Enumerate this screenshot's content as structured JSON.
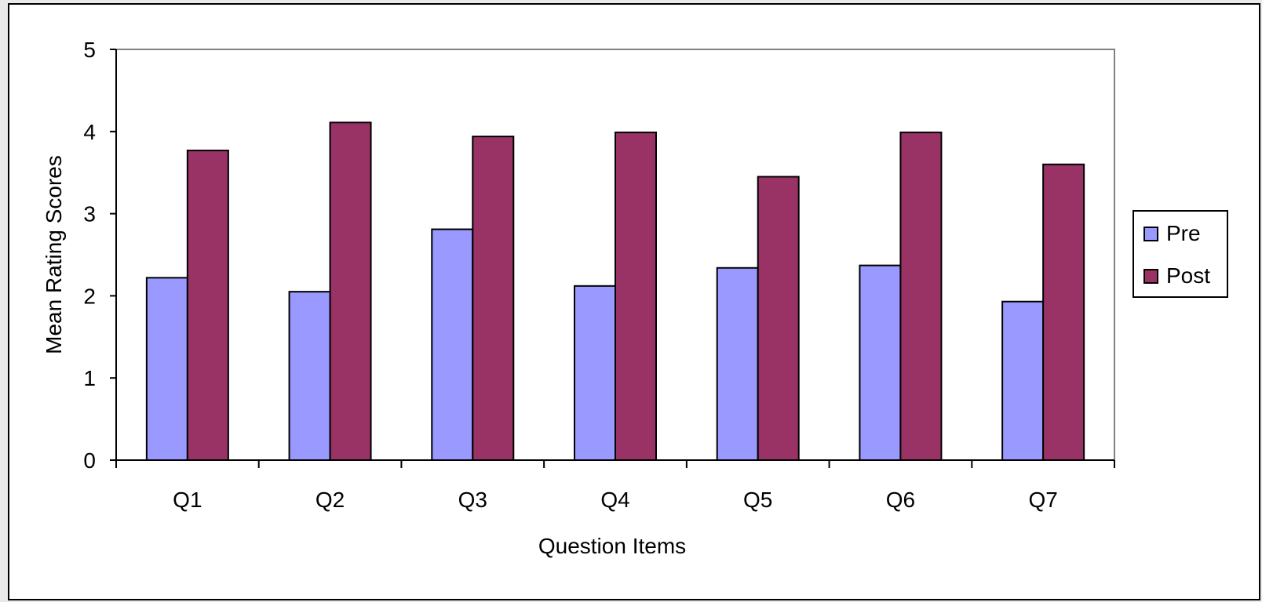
{
  "chart_data": {
    "type": "bar",
    "title": "",
    "xlabel": "Question Items",
    "ylabel": "Mean Rating Scores",
    "ylim": [
      0,
      5
    ],
    "yticks": [
      "0",
      "1",
      "2",
      "3",
      "4",
      "5"
    ],
    "categories": [
      "Q1",
      "Q2",
      "Q3",
      "Q4",
      "Q5",
      "Q6",
      "Q7"
    ],
    "series": [
      {
        "name": "Pre",
        "color": "#9999ff",
        "values": [
          2.22,
          2.05,
          2.81,
          2.12,
          2.34,
          2.37,
          1.93
        ]
      },
      {
        "name": "Post",
        "color": "#993366",
        "values": [
          3.77,
          4.11,
          3.94,
          3.99,
          3.45,
          3.99,
          3.6
        ]
      }
    ],
    "grid": false,
    "legend_position": "right"
  }
}
